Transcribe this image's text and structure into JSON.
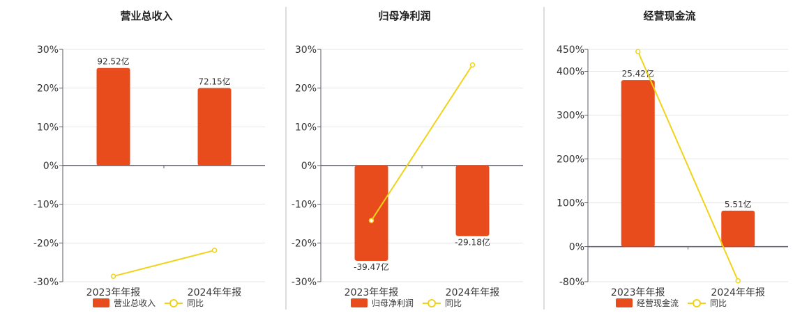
{
  "colors": {
    "bar": "#E84C1C",
    "line": "#F0D21A",
    "grid": "#E6E6E6",
    "axis": "#5A5A66",
    "divider": "#BBBBBB"
  },
  "chart_data": [
    {
      "type": "bar",
      "title": "营业总收入",
      "categories": [
        "2023年年报",
        "2024年年报"
      ],
      "series": [
        {
          "name": "营业总收入",
          "type": "bar",
          "values": [
            25.2,
            20.0
          ],
          "labels": [
            "92.52亿",
            "72.15亿"
          ]
        },
        {
          "name": "同比",
          "type": "line",
          "values": [
            -28.6,
            -21.9
          ]
        }
      ],
      "ylim": [
        -30,
        30
      ],
      "yticks": [
        "30%",
        "20%",
        "10%",
        "0%",
        "-10%",
        "-20%",
        "-30%"
      ],
      "grid": true,
      "legend": "bottom"
    },
    {
      "type": "bar",
      "title": "归母净利润",
      "categories": [
        "2023年年报",
        "2024年年报"
      ],
      "series": [
        {
          "name": "归母净利润",
          "type": "bar",
          "values": [
            -24.6,
            -18.2
          ],
          "labels": [
            "-39.47亿",
            "-29.18亿"
          ]
        },
        {
          "name": "同比",
          "type": "line",
          "values": [
            -14.2,
            26.0
          ]
        }
      ],
      "ylim": [
        -30,
        30
      ],
      "yticks": [
        "30%",
        "20%",
        "10%",
        "0%",
        "-10%",
        "-20%",
        "-30%"
      ],
      "grid": true,
      "legend": "bottom"
    },
    {
      "type": "bar",
      "title": "经营现金流",
      "categories": [
        "2023年年报",
        "2024年年报"
      ],
      "series": [
        {
          "name": "经营现金流",
          "type": "bar",
          "values": [
            380,
            82
          ],
          "labels": [
            "25.42亿",
            "5.51亿"
          ]
        },
        {
          "name": "同比",
          "type": "line",
          "values": [
            445,
            -78
          ]
        }
      ],
      "ylim": [
        -80,
        450
      ],
      "ytick_values": [
        450,
        400,
        300,
        200,
        100,
        0,
        -80
      ],
      "yticks": [
        "450%",
        "400%",
        "300%",
        "200%",
        "100%",
        "0%",
        "-80%"
      ],
      "grid": true,
      "legend": "bottom"
    }
  ]
}
